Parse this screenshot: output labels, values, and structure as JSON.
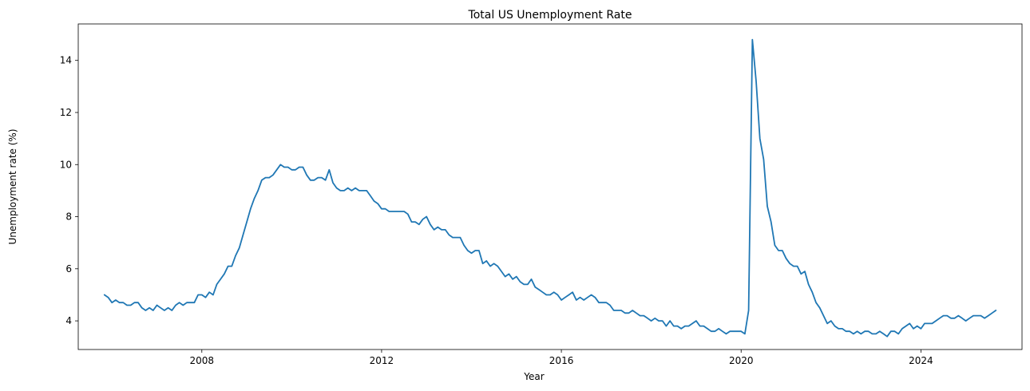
{
  "chart_data": {
    "type": "line",
    "title": "Total US Unemployment Rate",
    "xlabel": "Year",
    "ylabel": "Unemployment rate (%)",
    "xlim": [
      "2005-04",
      "2026-04"
    ],
    "ylim": [
      2.9,
      15.4
    ],
    "xticks": [
      "2008",
      "2012",
      "2016",
      "2020",
      "2024"
    ],
    "yticks": [
      "4",
      "6",
      "8",
      "10",
      "12",
      "14"
    ],
    "grid": false,
    "legend": "none",
    "series": [
      {
        "color": "#1f77b4",
        "x": [
          "2005-11",
          "2005-12",
          "2006-01",
          "2006-02",
          "2006-03",
          "2006-04",
          "2006-05",
          "2006-06",
          "2006-07",
          "2006-08",
          "2006-09",
          "2006-10",
          "2006-11",
          "2006-12",
          "2007-01",
          "2007-02",
          "2007-03",
          "2007-04",
          "2007-05",
          "2007-06",
          "2007-07",
          "2007-08",
          "2007-09",
          "2007-10",
          "2007-11",
          "2007-12",
          "2008-01",
          "2008-02",
          "2008-03",
          "2008-04",
          "2008-05",
          "2008-06",
          "2008-07",
          "2008-08",
          "2008-09",
          "2008-10",
          "2008-11",
          "2008-12",
          "2009-01",
          "2009-02",
          "2009-03",
          "2009-04",
          "2009-05",
          "2009-06",
          "2009-07",
          "2009-08",
          "2009-09",
          "2009-10",
          "2009-11",
          "2009-12",
          "2010-01",
          "2010-02",
          "2010-03",
          "2010-04",
          "2010-05",
          "2010-06",
          "2010-07",
          "2010-08",
          "2010-09",
          "2010-10",
          "2010-11",
          "2010-12",
          "2011-01",
          "2011-02",
          "2011-03",
          "2011-04",
          "2011-05",
          "2011-06",
          "2011-07",
          "2011-08",
          "2011-09",
          "2011-10",
          "2011-11",
          "2011-12",
          "2012-01",
          "2012-02",
          "2012-03",
          "2012-04",
          "2012-05",
          "2012-06",
          "2012-07",
          "2012-08",
          "2012-09",
          "2012-10",
          "2012-11",
          "2012-12",
          "2013-01",
          "2013-02",
          "2013-03",
          "2013-04",
          "2013-05",
          "2013-06",
          "2013-07",
          "2013-08",
          "2013-09",
          "2013-10",
          "2013-11",
          "2013-12",
          "2014-01",
          "2014-02",
          "2014-03",
          "2014-04",
          "2014-05",
          "2014-06",
          "2014-07",
          "2014-08",
          "2014-09",
          "2014-10",
          "2014-11",
          "2014-12",
          "2015-01",
          "2015-02",
          "2015-03",
          "2015-04",
          "2015-05",
          "2015-06",
          "2015-07",
          "2015-08",
          "2015-09",
          "2015-10",
          "2015-11",
          "2015-12",
          "2016-01",
          "2016-02",
          "2016-03",
          "2016-04",
          "2016-05",
          "2016-06",
          "2016-07",
          "2016-08",
          "2016-09",
          "2016-10",
          "2016-11",
          "2016-12",
          "2017-01",
          "2017-02",
          "2017-03",
          "2017-04",
          "2017-05",
          "2017-06",
          "2017-07",
          "2017-08",
          "2017-09",
          "2017-10",
          "2017-11",
          "2017-12",
          "2018-01",
          "2018-02",
          "2018-03",
          "2018-04",
          "2018-05",
          "2018-06",
          "2018-07",
          "2018-08",
          "2018-09",
          "2018-10",
          "2018-11",
          "2018-12",
          "2019-01",
          "2019-02",
          "2019-03",
          "2019-04",
          "2019-05",
          "2019-06",
          "2019-07",
          "2019-08",
          "2019-09",
          "2019-10",
          "2019-11",
          "2019-12",
          "2020-01",
          "2020-02",
          "2020-03",
          "2020-04",
          "2020-05",
          "2020-06",
          "2020-07",
          "2020-08",
          "2020-09",
          "2020-10",
          "2020-11",
          "2020-12",
          "2021-01",
          "2021-02",
          "2021-03",
          "2021-04",
          "2021-05",
          "2021-06",
          "2021-07",
          "2021-08",
          "2021-09",
          "2021-10",
          "2021-11",
          "2021-12",
          "2022-01",
          "2022-02",
          "2022-03",
          "2022-04",
          "2022-05",
          "2022-06",
          "2022-07",
          "2022-08",
          "2022-09",
          "2022-10",
          "2022-11",
          "2022-12",
          "2023-01",
          "2023-02",
          "2023-03",
          "2023-04",
          "2023-05",
          "2023-06",
          "2023-07",
          "2023-08",
          "2023-09",
          "2023-10",
          "2023-11",
          "2023-12",
          "2024-01",
          "2024-02",
          "2024-03",
          "2024-04",
          "2024-05",
          "2024-06",
          "2024-07",
          "2024-08",
          "2024-09",
          "2024-10",
          "2024-11",
          "2024-12",
          "2025-01",
          "2025-02",
          "2025-03",
          "2025-04",
          "2025-05",
          "2025-06",
          "2025-07",
          "2025-08",
          "2025-09"
        ],
        "y": [
          5.0,
          4.9,
          4.7,
          4.8,
          4.7,
          4.7,
          4.6,
          4.6,
          4.7,
          4.7,
          4.5,
          4.4,
          4.5,
          4.4,
          4.6,
          4.5,
          4.4,
          4.5,
          4.4,
          4.6,
          4.7,
          4.6,
          4.7,
          4.7,
          4.7,
          5.0,
          5.0,
          4.9,
          5.1,
          5.0,
          5.4,
          5.6,
          5.8,
          6.1,
          6.1,
          6.5,
          6.8,
          7.3,
          7.8,
          8.3,
          8.7,
          9.0,
          9.4,
          9.5,
          9.5,
          9.6,
          9.8,
          10.0,
          9.9,
          9.9,
          9.8,
          9.8,
          9.9,
          9.9,
          9.6,
          9.4,
          9.4,
          9.5,
          9.5,
          9.4,
          9.8,
          9.3,
          9.1,
          9.0,
          9.0,
          9.1,
          9.0,
          9.1,
          9.0,
          9.0,
          9.0,
          8.8,
          8.6,
          8.5,
          8.3,
          8.3,
          8.2,
          8.2,
          8.2,
          8.2,
          8.2,
          8.1,
          7.8,
          7.8,
          7.7,
          7.9,
          8.0,
          7.7,
          7.5,
          7.6,
          7.5,
          7.5,
          7.3,
          7.2,
          7.2,
          7.2,
          6.9,
          6.7,
          6.6,
          6.7,
          6.7,
          6.2,
          6.3,
          6.1,
          6.2,
          6.1,
          5.9,
          5.7,
          5.8,
          5.6,
          5.7,
          5.5,
          5.4,
          5.4,
          5.6,
          5.3,
          5.2,
          5.1,
          5.0,
          5.0,
          5.1,
          5.0,
          4.8,
          4.9,
          5.0,
          5.1,
          4.8,
          4.9,
          4.8,
          4.9,
          5.0,
          4.9,
          4.7,
          4.7,
          4.7,
          4.6,
          4.4,
          4.4,
          4.4,
          4.3,
          4.3,
          4.4,
          4.3,
          4.2,
          4.2,
          4.1,
          4.0,
          4.1,
          4.0,
          4.0,
          3.8,
          4.0,
          3.8,
          3.8,
          3.7,
          3.8,
          3.8,
          3.9,
          4.0,
          3.8,
          3.8,
          3.7,
          3.6,
          3.6,
          3.7,
          3.6,
          3.5,
          3.6,
          3.6,
          3.6,
          3.6,
          3.5,
          4.4,
          14.8,
          13.2,
          11.0,
          10.2,
          8.4,
          7.8,
          6.9,
          6.7,
          6.7,
          6.4,
          6.2,
          6.1,
          6.1,
          5.8,
          5.9,
          5.4,
          5.1,
          4.7,
          4.5,
          4.2,
          3.9,
          4.0,
          3.8,
          3.7,
          3.7,
          3.6,
          3.6,
          3.5,
          3.6,
          3.5,
          3.6,
          3.6,
          3.5,
          3.5,
          3.6,
          3.5,
          3.4,
          3.6,
          3.6,
          3.5,
          3.7,
          3.8,
          3.9,
          3.7,
          3.8,
          3.7,
          3.9,
          3.9,
          3.9,
          4.0,
          4.1,
          4.2,
          4.2,
          4.1,
          4.1,
          4.2,
          4.1,
          4.0,
          4.1,
          4.2,
          4.2,
          4.2,
          4.1,
          4.2,
          4.3,
          4.4
        ]
      }
    ]
  }
}
